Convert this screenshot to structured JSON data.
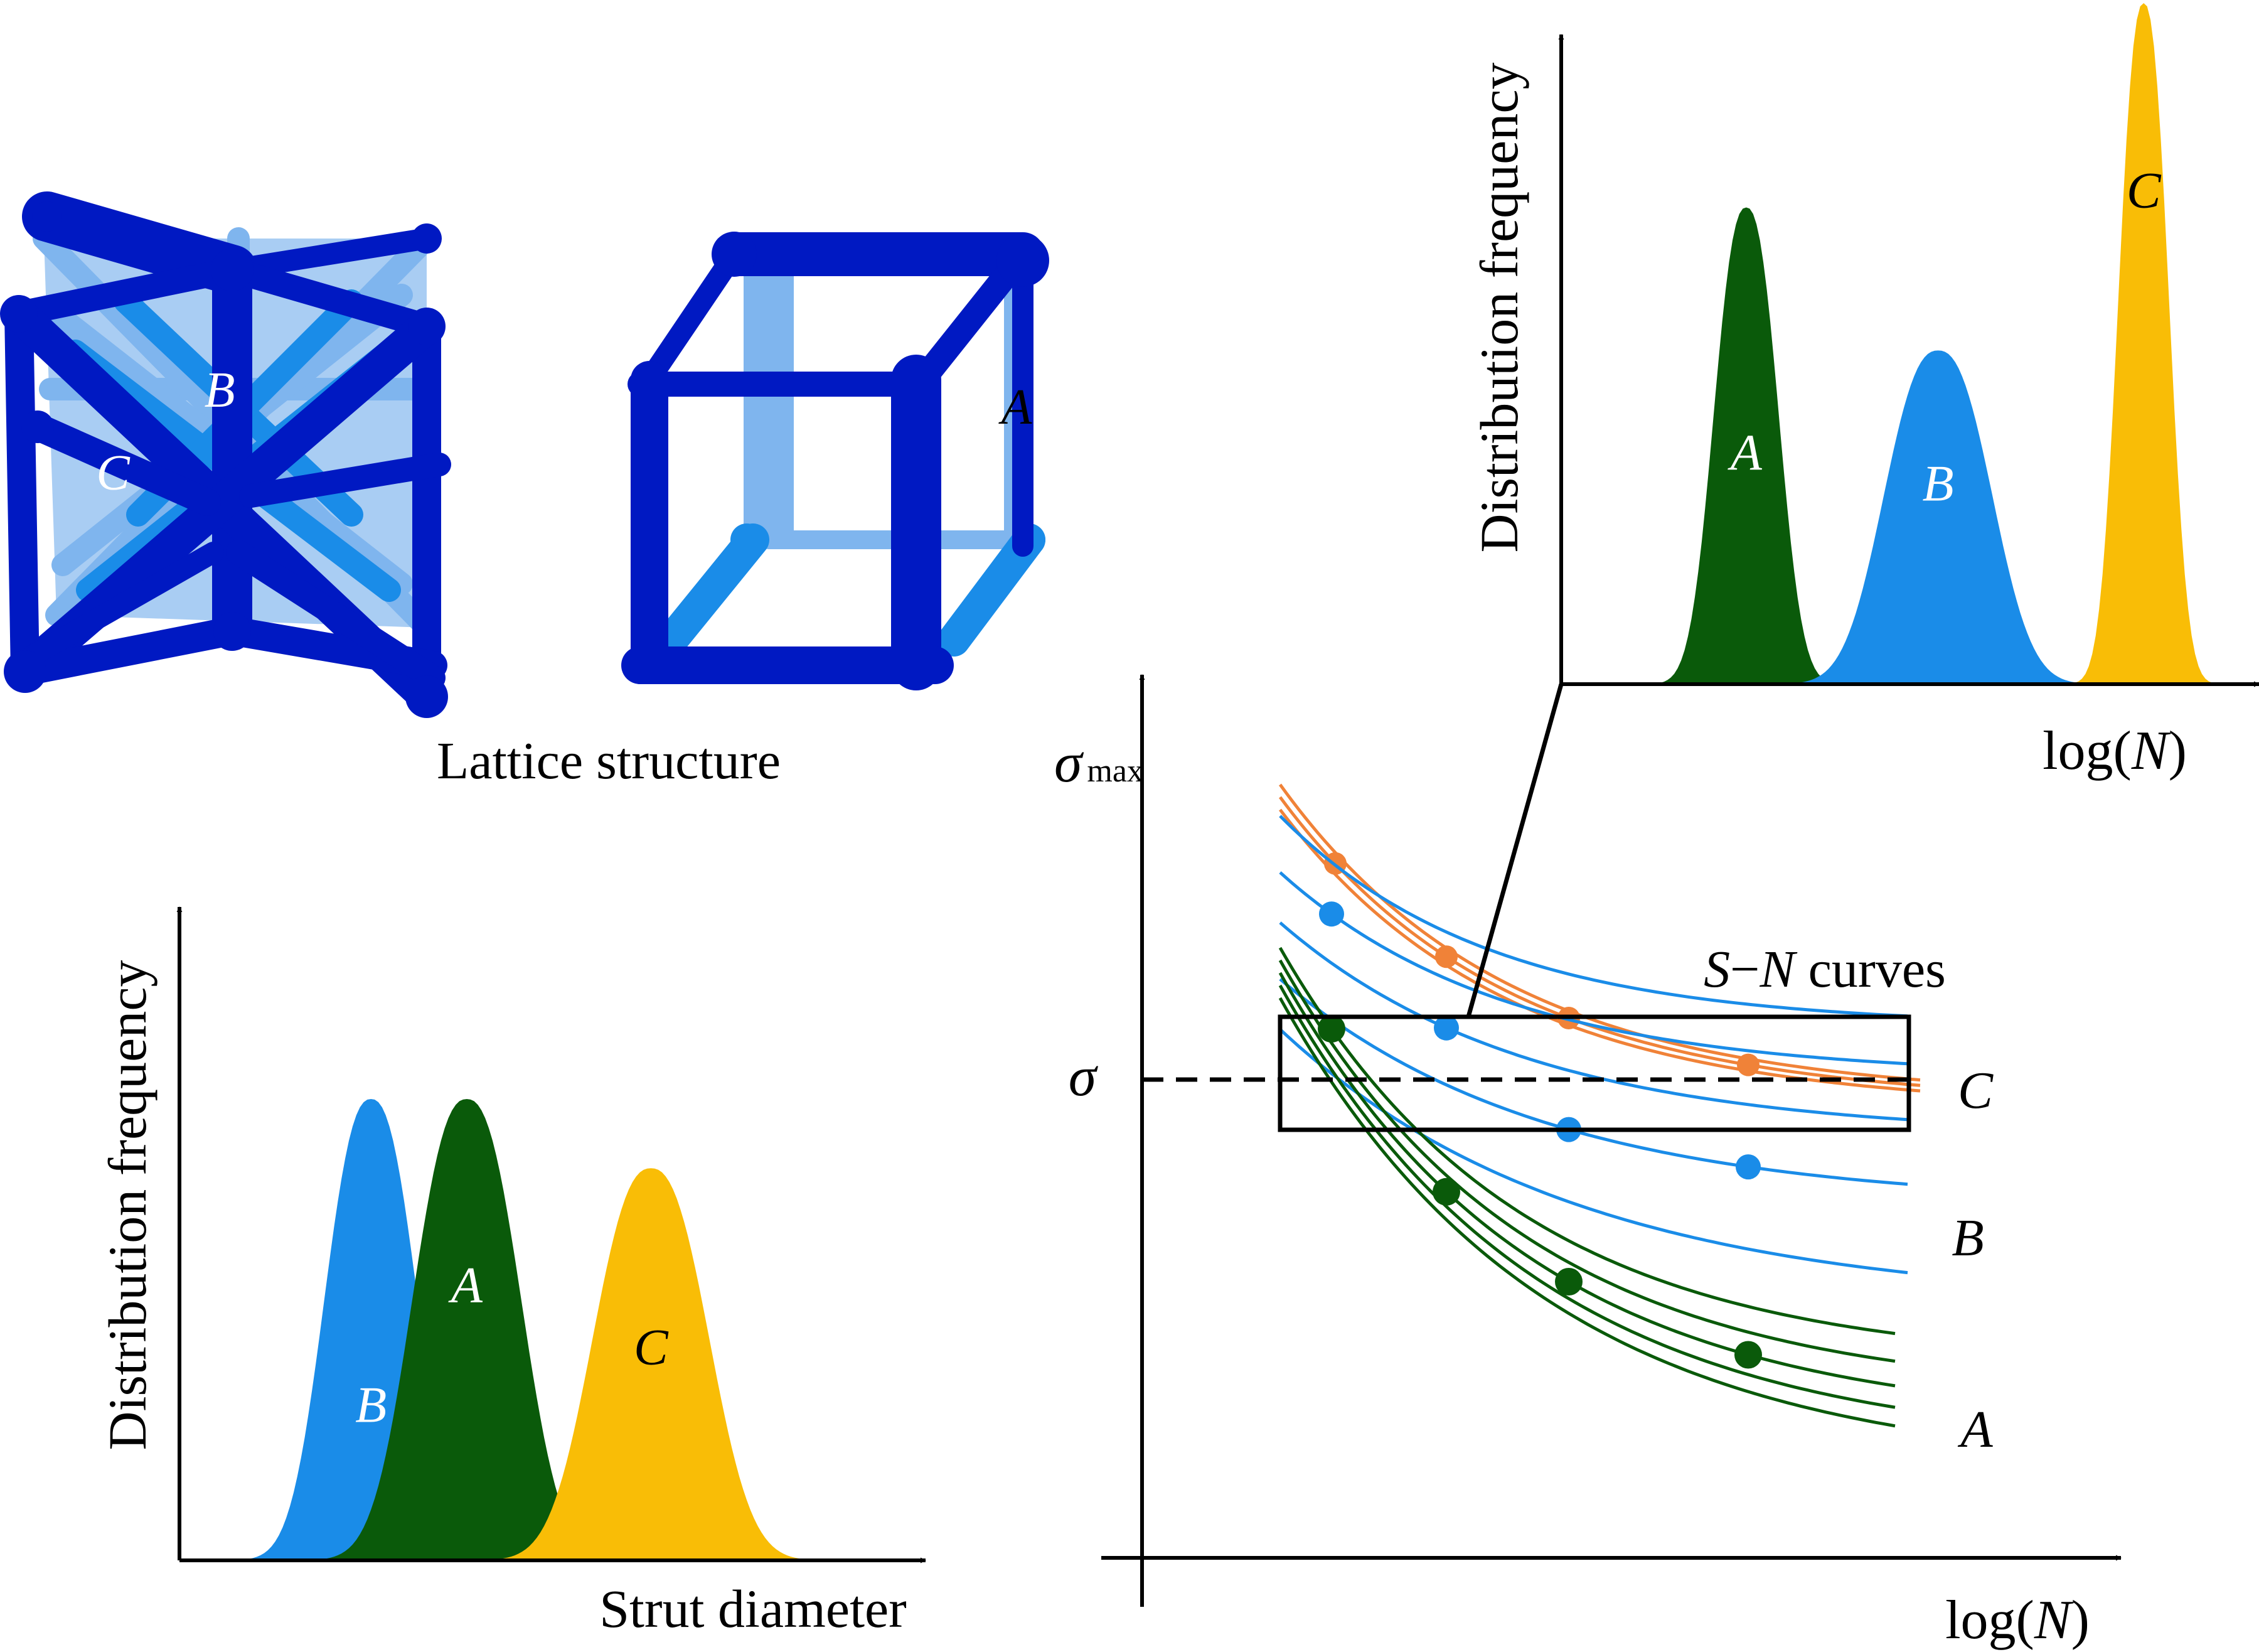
{
  "colors": {
    "A": "#0a5a0a",
    "B": "#1a8ce8",
    "C": "#f9bd06",
    "orange": "#f08238",
    "lattice_dark": "#0019c2",
    "lattice_light": "#7fb5ee",
    "axis": "#000000"
  },
  "lattice": {
    "caption": "Lattice structure",
    "label_B": "B",
    "label_C": "C",
    "label_A": "A"
  },
  "top_dist": {
    "ylabel": "Distribution frequency",
    "xlabel_prefix": "log(",
    "xlabel_var": "N",
    "xlabel_suffix": ")",
    "peaks": [
      {
        "name": "A",
        "center": 0.27,
        "width": 0.045,
        "height": 0.7
      },
      {
        "name": "B",
        "center": 0.55,
        "width": 0.075,
        "height": 0.49
      },
      {
        "name": "C",
        "center": 0.85,
        "width": 0.035,
        "height": 1.0
      }
    ]
  },
  "bottom_dist": {
    "ylabel": "Distribution frequency",
    "xlabel": "Strut diameter",
    "peaks": [
      {
        "name": "B",
        "center": 0.26,
        "width": 0.06,
        "height": 1.0
      },
      {
        "name": "A",
        "center": 0.39,
        "width": 0.07,
        "height": 1.0
      },
      {
        "name": "C",
        "center": 0.64,
        "width": 0.075,
        "height": 0.85
      }
    ]
  },
  "sn": {
    "ylabel_sym": "σ",
    "ylabel_sub": "max",
    "stress_label": "σ",
    "title_S": "S",
    "title_dash": "−",
    "title_N": "N",
    "title_rest": " curves",
    "xlabel_prefix": "log(",
    "xlabel_var": "N",
    "xlabel_suffix": ")",
    "label_C": "C",
    "label_B": "B",
    "label_A": "A"
  }
}
